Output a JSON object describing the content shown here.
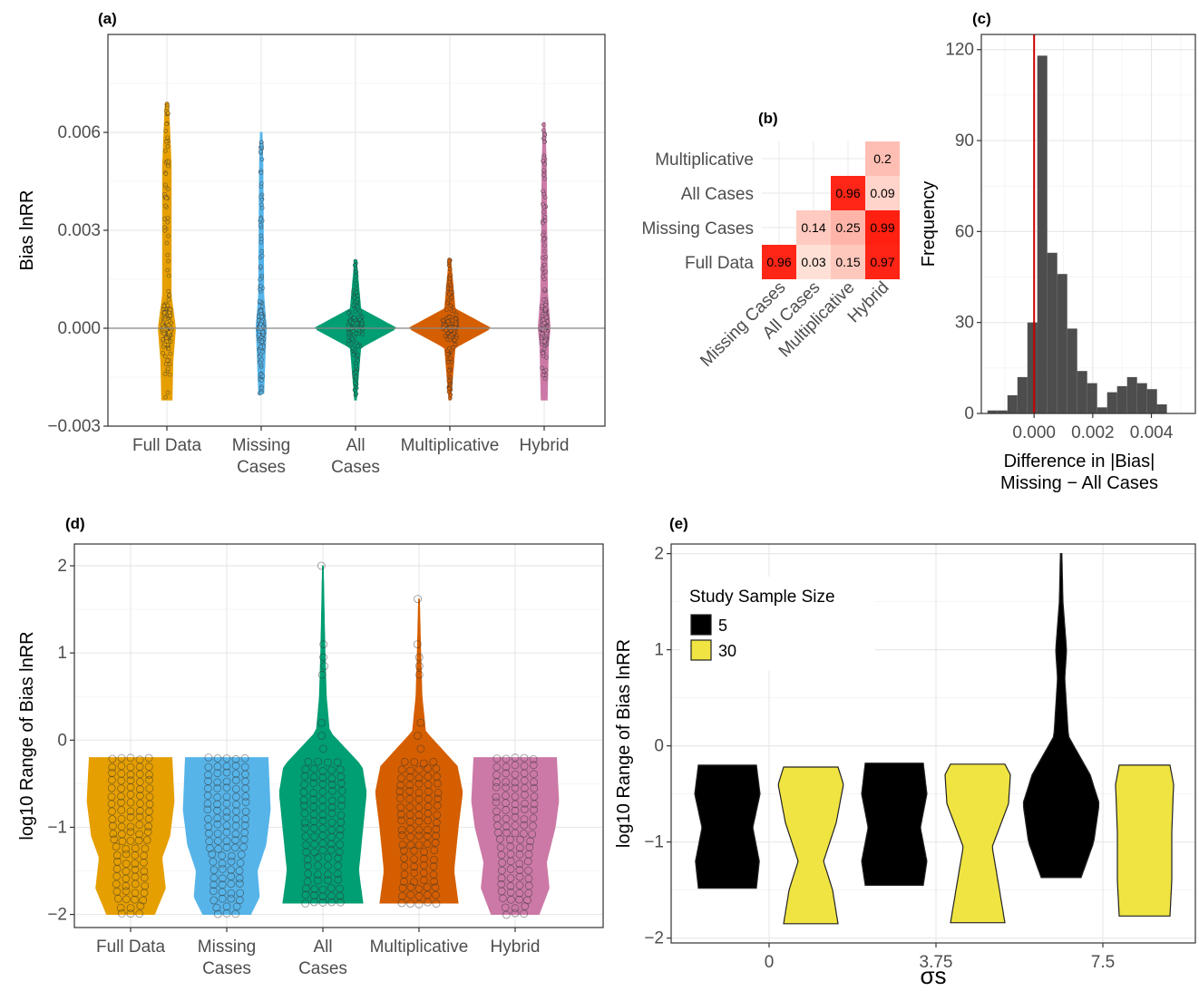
{
  "colors": {
    "full_data": "#E69F00",
    "missing_cases": "#56B4E9",
    "all_cases": "#009E73",
    "multiplicative": "#D55E00",
    "hybrid": "#CC79A7",
    "ref_line": "#CC0000",
    "hist_bar": "#4D4D4D",
    "ss5": "#000000",
    "ss30": "#F0E442"
  },
  "chart_data": [
    {
      "panel": "(a)",
      "type": "violin",
      "ylabel": "Bias lnRR",
      "categories": [
        "Full Data",
        "Missing\nCases",
        "All\nCases",
        "Multiplicative",
        "Hybrid"
      ],
      "ylim": [
        -0.003,
        0.009
      ],
      "yticks": [
        -0.003,
        0.0,
        0.003,
        0.006
      ],
      "ytick_labels": [
        "−0.003",
        "0.000",
        "0.003",
        "0.006"
      ],
      "reference_line_y": 0.0,
      "series": [
        {
          "category": "Full Data",
          "min": -0.0022,
          "max": 0.0069,
          "widths": [
            [
              -0.0022,
              0.12
            ],
            [
              -0.001,
              0.14
            ],
            [
              0,
              0.2
            ],
            [
              0.001,
              0.1
            ],
            [
              0.003,
              0.1
            ],
            [
              0.005,
              0.1
            ],
            [
              0.0069,
              0.04
            ]
          ]
        },
        {
          "category": "Missing Cases",
          "min": -0.002,
          "max": 0.006,
          "widths": [
            [
              -0.002,
              0.06
            ],
            [
              -0.0005,
              0.1
            ],
            [
              0,
              0.12
            ],
            [
              0.001,
              0.06
            ],
            [
              0.003,
              0.05
            ],
            [
              0.005,
              0.04
            ],
            [
              0.006,
              0.02
            ]
          ]
        },
        {
          "category": "All Cases",
          "min": -0.0022,
          "max": 0.0021,
          "widths": [
            [
              -0.0022,
              0.02
            ],
            [
              -0.0006,
              0.12
            ],
            [
              0,
              0.95
            ],
            [
              0.0006,
              0.12
            ],
            [
              0.0021,
              0.02
            ]
          ]
        },
        {
          "category": "Multiplicative",
          "min": -0.0022,
          "max": 0.0021,
          "widths": [
            [
              -0.0022,
              0.02
            ],
            [
              -0.0006,
              0.12
            ],
            [
              0,
              0.95
            ],
            [
              0.0006,
              0.12
            ],
            [
              0.0021,
              0.02
            ]
          ]
        },
        {
          "category": "Hybrid",
          "min": -0.0022,
          "max": 0.0063,
          "widths": [
            [
              -0.0022,
              0.07
            ],
            [
              -0.0005,
              0.1
            ],
            [
              0,
              0.14
            ],
            [
              0.001,
              0.08
            ],
            [
              0.003,
              0.06
            ],
            [
              0.005,
              0.05
            ],
            [
              0.0063,
              0.02
            ]
          ]
        }
      ]
    },
    {
      "panel": "(b)",
      "type": "heatmap",
      "rows": [
        "Multiplicative",
        "All Cases",
        "Missing Cases",
        "Full Data"
      ],
      "cols": [
        "Missing Cases",
        "All Cases",
        "Multiplicative",
        "Hybrid"
      ],
      "cells": [
        {
          "row": "Multiplicative",
          "col": "Hybrid",
          "value": 0.2,
          "label": "0.2"
        },
        {
          "row": "All Cases",
          "col": "Multiplicative",
          "value": 0.96,
          "label": "0.96"
        },
        {
          "row": "All Cases",
          "col": "Hybrid",
          "value": 0.09,
          "label": "0.09"
        },
        {
          "row": "Missing Cases",
          "col": "All Cases",
          "value": 0.14,
          "label": "0.14"
        },
        {
          "row": "Missing Cases",
          "col": "Multiplicative",
          "value": 0.25,
          "label": "0.25"
        },
        {
          "row": "Missing Cases",
          "col": "Hybrid",
          "value": 0.99,
          "label": "0.99"
        },
        {
          "row": "Full Data",
          "col": "Missing Cases",
          "value": 0.96,
          "label": "0.96"
        },
        {
          "row": "Full Data",
          "col": "All Cases",
          "value": 0.03,
          "label": "0.03"
        },
        {
          "row": "Full Data",
          "col": "Multiplicative",
          "value": 0.15,
          "label": "0.15"
        },
        {
          "row": "Full Data",
          "col": "Hybrid",
          "value": 0.97,
          "label": "0.97"
        }
      ]
    },
    {
      "panel": "(c)",
      "type": "histogram",
      "xlabel": "Difference in |Bias|\nMissing − All Cases",
      "ylabel": "Frequency",
      "xlim": [
        -0.0018,
        0.0055
      ],
      "ylim": [
        0,
        125
      ],
      "xticks": [
        0.0,
        0.002,
        0.004
      ],
      "xtick_labels": [
        "0.000",
        "0.002",
        "0.004"
      ],
      "yticks": [
        0,
        30,
        60,
        90,
        120
      ],
      "ytick_labels": [
        "0",
        "30",
        "60",
        "90",
        "120"
      ],
      "bin_width": 0.00034,
      "bin_start": -0.00159,
      "counts": [
        1,
        1,
        6,
        12,
        30,
        118,
        53,
        46,
        28,
        14,
        10,
        2,
        7,
        9,
        12,
        10,
        8,
        3
      ],
      "reference_line_x": 0.0
    },
    {
      "panel": "(d)",
      "type": "violin",
      "ylabel": "log10 Range of Bias lnRR",
      "categories": [
        "Full Data",
        "Missing\nCases",
        "All\nCases",
        "Multiplicative",
        "Hybrid"
      ],
      "ylim": [
        -2.15,
        2.25
      ],
      "yticks": [
        -2,
        -1,
        0,
        1,
        2
      ],
      "ytick_labels": [
        "−2",
        "−1",
        "0",
        "1",
        "2"
      ],
      "series": [
        {
          "category": "Full Data",
          "min": -2.0,
          "max": -0.2,
          "widths": [
            [
              -2,
              0.55
            ],
            [
              -1.7,
              0.8
            ],
            [
              -1.35,
              0.72
            ],
            [
              -1.1,
              0.9
            ],
            [
              -0.7,
              1.0
            ],
            [
              -0.2,
              0.95
            ]
          ]
        },
        {
          "category": "Missing Cases",
          "min": -2.0,
          "max": -0.2,
          "widths": [
            [
              -2,
              0.55
            ],
            [
              -1.8,
              0.75
            ],
            [
              -1.5,
              0.7
            ],
            [
              -1.2,
              0.9
            ],
            [
              -0.8,
              1.0
            ],
            [
              -0.2,
              0.95
            ]
          ]
        },
        {
          "category": "All Cases",
          "min": -1.87,
          "max": 2.0,
          "widths": [
            [
              -1.87,
              0.92
            ],
            [
              -1.5,
              0.82
            ],
            [
              -1.1,
              0.9
            ],
            [
              -0.6,
              1.0
            ],
            [
              -0.3,
              0.9
            ],
            [
              0.1,
              0.15
            ],
            [
              0.5,
              0.08
            ],
            [
              1.0,
              0.05
            ],
            [
              2.0,
              0.01
            ]
          ]
        },
        {
          "category": "Multiplicative",
          "min": -1.87,
          "max": 1.62,
          "widths": [
            [
              -1.87,
              0.9
            ],
            [
              -1.5,
              0.8
            ],
            [
              -1.0,
              0.9
            ],
            [
              -0.6,
              1.0
            ],
            [
              -0.3,
              0.88
            ],
            [
              0.1,
              0.15
            ],
            [
              0.5,
              0.07
            ],
            [
              1.0,
              0.04
            ],
            [
              1.62,
              0.01
            ]
          ]
        },
        {
          "category": "Hybrid",
          "min": -2.0,
          "max": -0.2,
          "widths": [
            [
              -2,
              0.55
            ],
            [
              -1.7,
              0.78
            ],
            [
              -1.4,
              0.72
            ],
            [
              -1.0,
              0.92
            ],
            [
              -0.7,
              1.0
            ],
            [
              -0.2,
              0.95
            ]
          ]
        }
      ]
    },
    {
      "panel": "(e)",
      "type": "violin",
      "xlabel": "σs",
      "ylabel": "log10 Range of Bias lnRR",
      "categories": [
        "0",
        "3.75",
        "7.5"
      ],
      "ylim": [
        -2.05,
        2.1
      ],
      "yticks": [
        -2,
        -1,
        0,
        1,
        2
      ],
      "ytick_labels": [
        "−2",
        "−1",
        "0",
        "1",
        "2"
      ],
      "legend_title": "Study Sample Size",
      "legend_position": "top-left",
      "legend_entries": [
        "5",
        "30"
      ],
      "series": [
        {
          "name": "5",
          "category": "0",
          "min": -1.48,
          "max": -0.2,
          "widths": [
            [
              -1.48,
              0.8
            ],
            [
              -1.2,
              0.88
            ],
            [
              -0.85,
              0.7
            ],
            [
              -0.5,
              0.9
            ],
            [
              -0.2,
              0.8
            ]
          ]
        },
        {
          "name": "30",
          "category": "0",
          "min": -1.85,
          "max": -0.22,
          "widths": [
            [
              -1.85,
              0.75
            ],
            [
              -1.5,
              0.6
            ],
            [
              -1.2,
              0.35
            ],
            [
              -0.8,
              0.7
            ],
            [
              -0.4,
              0.9
            ],
            [
              -0.22,
              0.75
            ]
          ]
        },
        {
          "name": "5",
          "category": "3.75",
          "min": -1.45,
          "max": -0.18,
          "widths": [
            [
              -1.45,
              0.8
            ],
            [
              -1.2,
              0.9
            ],
            [
              -0.85,
              0.72
            ],
            [
              -0.5,
              0.9
            ],
            [
              -0.18,
              0.8
            ]
          ]
        },
        {
          "name": "30",
          "category": "3.75",
          "min": -1.84,
          "max": -0.19,
          "widths": [
            [
              -1.84,
              0.75
            ],
            [
              -1.5,
              0.6
            ],
            [
              -1.05,
              0.4
            ],
            [
              -0.6,
              0.85
            ],
            [
              -0.3,
              0.9
            ],
            [
              -0.19,
              0.75
            ]
          ]
        },
        {
          "name": "5",
          "category": "7.5",
          "min": -1.37,
          "max": 2.0,
          "widths": [
            [
              -1.37,
              0.55
            ],
            [
              -1.0,
              0.9
            ],
            [
              -0.6,
              1.05
            ],
            [
              -0.3,
              0.8
            ],
            [
              0.1,
              0.2
            ],
            [
              0.7,
              0.1
            ],
            [
              1.0,
              0.15
            ],
            [
              1.5,
              0.05
            ],
            [
              2.0,
              0.02
            ]
          ]
        },
        {
          "name": "30",
          "category": "7.5",
          "min": -1.77,
          "max": -0.2,
          "widths": [
            [
              -1.77,
              0.7
            ],
            [
              -1.4,
              0.75
            ],
            [
              -0.9,
              0.75
            ],
            [
              -0.4,
              0.8
            ],
            [
              -0.2,
              0.7
            ]
          ]
        }
      ]
    }
  ]
}
